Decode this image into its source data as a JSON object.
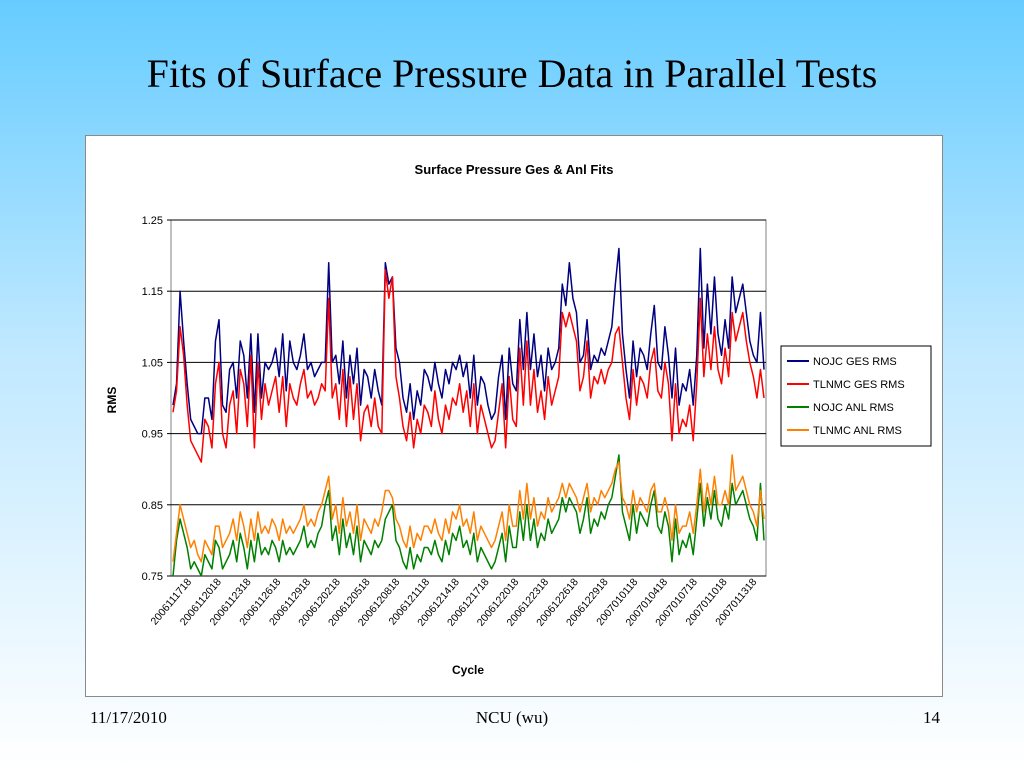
{
  "slide": {
    "title": "Fits of Surface Pressure Data in Parallel Tests",
    "footer_date": "11/17/2010",
    "footer_center": "NCU (wu)",
    "page_number": "14"
  },
  "colors": {
    "NOJC GES RMS": "#000080",
    "TLNMC GES RMS": "#ff0000",
    "NOJC ANL RMS": "#008000",
    "TLNMC ANL RMS": "#ff8000"
  },
  "chart_data": {
    "type": "line",
    "title": "Surface Pressure Ges & Anl Fits",
    "xlabel": "Cycle",
    "ylabel": "RMS",
    "ylim": [
      0.75,
      1.25
    ],
    "yticks": [
      "1.25",
      "1.15",
      "1.05",
      "0.95",
      "0.85",
      "0.75"
    ],
    "grid": "horizontal",
    "legend": "right",
    "x_tick_labels": [
      "2006111718",
      "2006112018",
      "2006112318",
      "2006112618",
      "2006112918",
      "2006120218",
      "2006120518",
      "2006120818",
      "2006121118",
      "2006121418",
      "2006121718",
      "2006122018",
      "2006122318",
      "2006122618",
      "2006122918",
      "2007010118",
      "2007010418",
      "2007010718",
      "2007011018",
      "2007011318"
    ],
    "series": [
      {
        "name": "NOJC GES RMS",
        "values": [
          0.99,
          1.02,
          1.15,
          1.08,
          1.02,
          0.97,
          0.96,
          0.95,
          0.95,
          1.0,
          1.0,
          0.97,
          1.08,
          1.11,
          0.99,
          0.98,
          1.04,
          1.05,
          1.0,
          1.08,
          1.06,
          1.0,
          1.09,
          0.98,
          1.09,
          1.0,
          1.05,
          1.04,
          1.05,
          1.07,
          1.03,
          1.09,
          1.01,
          1.08,
          1.05,
          1.04,
          1.06,
          1.09,
          1.04,
          1.05,
          1.03,
          1.04,
          1.05,
          1.05,
          1.19,
          1.05,
          1.06,
          1.02,
          1.08,
          1.0,
          1.06,
          1.02,
          1.07,
          0.99,
          1.04,
          1.03,
          1.0,
          1.04,
          1.01,
          0.99,
          1.19,
          1.16,
          1.17,
          1.07,
          1.05,
          1.0,
          0.98,
          1.02,
          0.97,
          1.01,
          0.99,
          1.04,
          1.03,
          1.01,
          1.05,
          1.02,
          1.0,
          1.04,
          1.02,
          1.05,
          1.04,
          1.06,
          1.03,
          1.05,
          1.0,
          1.06,
          0.99,
          1.03,
          1.02,
          0.99,
          0.97,
          0.98,
          1.03,
          1.06,
          0.97,
          1.07,
          1.02,
          1.01,
          1.11,
          1.04,
          1.12,
          1.04,
          1.09,
          1.03,
          1.06,
          1.01,
          1.07,
          1.04,
          1.05,
          1.07,
          1.16,
          1.13,
          1.19,
          1.14,
          1.12,
          1.05,
          1.06,
          1.11,
          1.04,
          1.06,
          1.05,
          1.07,
          1.06,
          1.08,
          1.1,
          1.16,
          1.21,
          1.09,
          1.04,
          1.0,
          1.08,
          1.03,
          1.07,
          1.06,
          1.04,
          1.09,
          1.13,
          1.05,
          1.04,
          1.1,
          1.06,
          1.0,
          1.07,
          0.99,
          1.02,
          1.01,
          1.04,
          0.99,
          1.06,
          1.21,
          1.07,
          1.16,
          1.09,
          1.17,
          1.09,
          1.06,
          1.11,
          1.07,
          1.17,
          1.12,
          1.14,
          1.16,
          1.12,
          1.08,
          1.06,
          1.05,
          1.12,
          1.04
        ],
        "y_stride_note": ""
      },
      {
        "name": "TLNMC GES RMS",
        "values": [
          0.98,
          1.01,
          1.1,
          1.06,
          0.99,
          0.94,
          0.93,
          0.92,
          0.91,
          0.97,
          0.96,
          0.93,
          1.02,
          1.05,
          0.95,
          0.93,
          0.99,
          1.01,
          0.95,
          1.04,
          1.02,
          0.96,
          1.06,
          0.93,
          1.05,
          0.97,
          1.02,
          0.99,
          1.01,
          1.03,
          0.98,
          1.03,
          0.96,
          1.02,
          1.0,
          0.99,
          1.02,
          1.04,
          1.0,
          1.01,
          0.99,
          1.0,
          1.02,
          1.01,
          1.14,
          1.0,
          1.02,
          0.97,
          1.04,
          0.96,
          1.03,
          0.97,
          1.02,
          0.94,
          0.98,
          0.99,
          0.96,
          1.0,
          0.96,
          0.95,
          1.18,
          1.14,
          1.17,
          1.03,
          1.0,
          0.96,
          0.94,
          0.98,
          0.93,
          0.97,
          0.95,
          0.99,
          0.98,
          0.96,
          1.01,
          0.97,
          0.95,
          0.99,
          0.97,
          1.0,
          0.99,
          1.02,
          0.98,
          1.01,
          0.96,
          1.02,
          0.95,
          0.99,
          0.97,
          0.95,
          0.93,
          0.94,
          0.98,
          1.02,
          0.93,
          1.03,
          0.97,
          0.96,
          1.07,
          0.99,
          1.08,
          0.99,
          1.04,
          0.98,
          1.01,
          0.97,
          1.03,
          0.99,
          1.01,
          1.03,
          1.12,
          1.1,
          1.12,
          1.1,
          1.08,
          1.01,
          1.03,
          1.08,
          1.0,
          1.03,
          1.02,
          1.04,
          1.02,
          1.04,
          1.05,
          1.09,
          1.1,
          1.05,
          1.0,
          0.97,
          1.04,
          0.99,
          1.03,
          1.02,
          1.0,
          1.05,
          1.07,
          1.01,
          1.0,
          1.05,
          1.02,
          0.94,
          1.02,
          0.95,
          0.97,
          0.96,
          0.99,
          0.94,
          1.02,
          1.14,
          1.03,
          1.09,
          1.04,
          1.1,
          1.04,
          1.02,
          1.07,
          1.03,
          1.12,
          1.08,
          1.1,
          1.12,
          1.08,
          1.05,
          1.03,
          1.0,
          1.04,
          1.0
        ]
      },
      {
        "name": "NOJC ANL RMS",
        "values": [
          0.75,
          0.8,
          0.83,
          0.81,
          0.79,
          0.76,
          0.77,
          0.76,
          0.75,
          0.78,
          0.77,
          0.76,
          0.8,
          0.79,
          0.76,
          0.77,
          0.78,
          0.8,
          0.77,
          0.81,
          0.79,
          0.76,
          0.8,
          0.77,
          0.81,
          0.78,
          0.79,
          0.78,
          0.8,
          0.79,
          0.77,
          0.8,
          0.78,
          0.79,
          0.78,
          0.79,
          0.8,
          0.82,
          0.79,
          0.8,
          0.79,
          0.81,
          0.82,
          0.85,
          0.87,
          0.8,
          0.82,
          0.78,
          0.83,
          0.79,
          0.81,
          0.78,
          0.82,
          0.77,
          0.8,
          0.79,
          0.78,
          0.8,
          0.79,
          0.8,
          0.83,
          0.84,
          0.85,
          0.8,
          0.79,
          0.77,
          0.76,
          0.79,
          0.76,
          0.78,
          0.77,
          0.79,
          0.79,
          0.78,
          0.8,
          0.78,
          0.77,
          0.8,
          0.78,
          0.81,
          0.8,
          0.82,
          0.79,
          0.8,
          0.78,
          0.81,
          0.77,
          0.79,
          0.78,
          0.77,
          0.76,
          0.77,
          0.79,
          0.81,
          0.77,
          0.82,
          0.79,
          0.79,
          0.84,
          0.8,
          0.85,
          0.8,
          0.83,
          0.79,
          0.81,
          0.8,
          0.83,
          0.81,
          0.82,
          0.83,
          0.86,
          0.84,
          0.86,
          0.85,
          0.84,
          0.81,
          0.83,
          0.86,
          0.81,
          0.83,
          0.82,
          0.84,
          0.83,
          0.85,
          0.86,
          0.89,
          0.92,
          0.84,
          0.82,
          0.8,
          0.85,
          0.81,
          0.84,
          0.83,
          0.82,
          0.85,
          0.87,
          0.82,
          0.81,
          0.84,
          0.82,
          0.77,
          0.83,
          0.78,
          0.8,
          0.79,
          0.81,
          0.78,
          0.83,
          0.88,
          0.82,
          0.86,
          0.83,
          0.87,
          0.83,
          0.82,
          0.85,
          0.83,
          0.88,
          0.85,
          0.86,
          0.87,
          0.85,
          0.83,
          0.82,
          0.8,
          0.88,
          0.8
        ]
      },
      {
        "name": "TLNMC ANL RMS",
        "values": [
          0.77,
          0.81,
          0.85,
          0.83,
          0.81,
          0.79,
          0.8,
          0.78,
          0.77,
          0.8,
          0.79,
          0.78,
          0.82,
          0.82,
          0.79,
          0.8,
          0.81,
          0.83,
          0.8,
          0.84,
          0.82,
          0.79,
          0.83,
          0.8,
          0.84,
          0.81,
          0.82,
          0.81,
          0.83,
          0.82,
          0.8,
          0.83,
          0.81,
          0.82,
          0.81,
          0.82,
          0.83,
          0.85,
          0.82,
          0.83,
          0.82,
          0.84,
          0.85,
          0.87,
          0.89,
          0.83,
          0.85,
          0.81,
          0.86,
          0.82,
          0.84,
          0.81,
          0.85,
          0.8,
          0.83,
          0.82,
          0.81,
          0.83,
          0.82,
          0.84,
          0.87,
          0.87,
          0.86,
          0.83,
          0.82,
          0.8,
          0.79,
          0.82,
          0.79,
          0.81,
          0.8,
          0.82,
          0.82,
          0.81,
          0.83,
          0.81,
          0.8,
          0.83,
          0.81,
          0.84,
          0.83,
          0.85,
          0.82,
          0.83,
          0.81,
          0.84,
          0.8,
          0.82,
          0.81,
          0.8,
          0.79,
          0.8,
          0.82,
          0.84,
          0.8,
          0.85,
          0.82,
          0.82,
          0.87,
          0.83,
          0.88,
          0.83,
          0.86,
          0.82,
          0.84,
          0.83,
          0.86,
          0.84,
          0.85,
          0.86,
          0.88,
          0.86,
          0.88,
          0.87,
          0.86,
          0.84,
          0.86,
          0.88,
          0.84,
          0.86,
          0.85,
          0.87,
          0.86,
          0.87,
          0.88,
          0.9,
          0.91,
          0.86,
          0.85,
          0.83,
          0.87,
          0.84,
          0.86,
          0.85,
          0.84,
          0.87,
          0.88,
          0.84,
          0.84,
          0.86,
          0.84,
          0.8,
          0.85,
          0.81,
          0.82,
          0.82,
          0.84,
          0.81,
          0.85,
          0.9,
          0.84,
          0.88,
          0.85,
          0.89,
          0.85,
          0.85,
          0.87,
          0.85,
          0.92,
          0.87,
          0.88,
          0.89,
          0.87,
          0.85,
          0.84,
          0.82,
          0.87,
          0.83
        ]
      }
    ]
  }
}
